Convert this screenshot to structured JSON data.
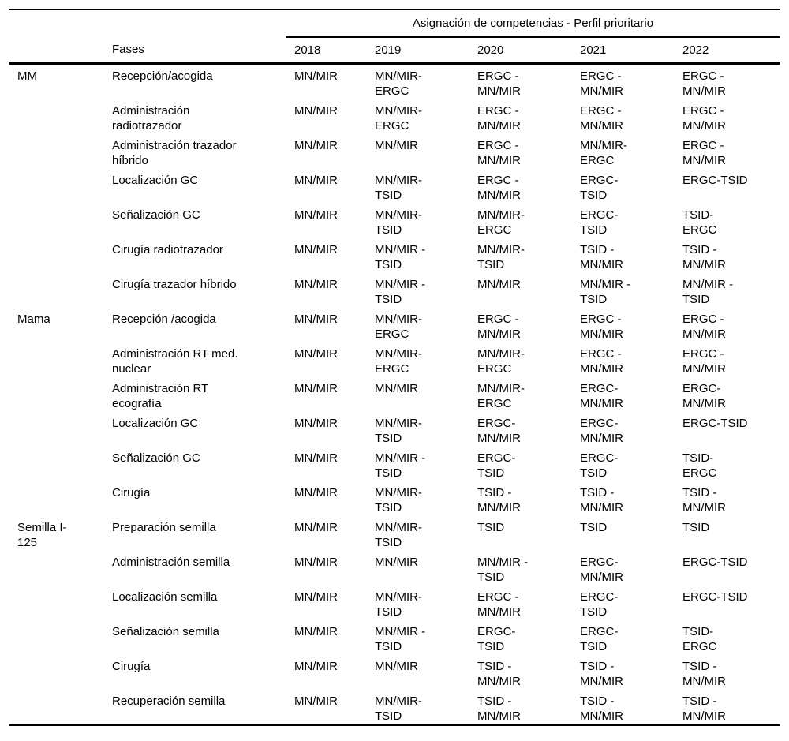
{
  "colors": {
    "background": "#ffffff",
    "text": "#000000",
    "rule": "#000000"
  },
  "table": {
    "spanning_header": "Asignación de competencias - Perfil prioritario",
    "fases_header": "Fases",
    "year_headers": [
      "2018",
      "2019",
      "2020",
      "2021",
      "2022"
    ],
    "groups": [
      {
        "label": "MM",
        "rows": [
          {
            "fase": "Recepción/acogida",
            "values": [
              "MN/MIR",
              "MN/MIR-\nERGC",
              "ERGC -\nMN/MIR",
              "ERGC -\nMN/MIR",
              "ERGC -\nMN/MIR"
            ]
          },
          {
            "fase": "Administración\nradiotrazador",
            "values": [
              "MN/MIR",
              "MN/MIR-\nERGC",
              "ERGC -\nMN/MIR",
              "ERGC -\nMN/MIR",
              "ERGC -\nMN/MIR"
            ]
          },
          {
            "fase": "Administración trazador\nhíbrido",
            "values": [
              "MN/MIR",
              "MN/MIR",
              "ERGC -\nMN/MIR",
              "MN/MIR-\nERGC",
              "ERGC -\nMN/MIR"
            ]
          },
          {
            "fase": "Localización GC",
            "values": [
              "MN/MIR",
              "MN/MIR-\nTSID",
              "ERGC -\nMN/MIR",
              "ERGC-\nTSID",
              "ERGC-TSID"
            ]
          },
          {
            "fase": "Señalización GC",
            "values": [
              "MN/MIR",
              "MN/MIR-\nTSID",
              "MN/MIR-\nERGC",
              "ERGC-\nTSID",
              "TSID-\nERGC"
            ]
          },
          {
            "fase": "Cirugía radiotrazador",
            "values": [
              "MN/MIR",
              "MN/MIR -\nTSID",
              "MN/MIR-\nTSID",
              "TSID -\nMN/MIR",
              "TSID -\nMN/MIR"
            ]
          },
          {
            "fase": "Cirugía trazador híbrido",
            "values": [
              "MN/MIR",
              "MN/MIR -\nTSID",
              "MN/MIR",
              "MN/MIR -\nTSID",
              "MN/MIR -\nTSID"
            ]
          }
        ]
      },
      {
        "label": "Mama",
        "rows": [
          {
            "fase": "Recepción /acogida",
            "values": [
              "MN/MIR",
              "MN/MIR-\nERGC",
              "ERGC -\nMN/MIR",
              "ERGC -\nMN/MIR",
              "ERGC -\nMN/MIR"
            ]
          },
          {
            "fase": "Administración RT med.\nnuclear",
            "values": [
              "MN/MIR",
              "MN/MIR-\nERGC",
              "MN/MIR-\nERGC",
              "ERGC -\nMN/MIR",
              "ERGC -\nMN/MIR"
            ]
          },
          {
            "fase": "Administración RT\necografía",
            "values": [
              "MN/MIR",
              "MN/MIR",
              "MN/MIR-\nERGC",
              "ERGC-\nMN/MIR",
              "ERGC-\nMN/MIR"
            ]
          },
          {
            "fase": "Localización GC",
            "values": [
              "MN/MIR",
              "MN/MIR-\nTSID",
              "ERGC-\nMN/MIR",
              "ERGC-\nMN/MIR",
              "ERGC-TSID"
            ]
          },
          {
            "fase": "Señalización GC",
            "values": [
              "MN/MIR",
              "MN/MIR -\nTSID",
              "ERGC-\nTSID",
              "ERGC-\nTSID",
              "TSID-\nERGC"
            ]
          },
          {
            "fase": "Cirugía",
            "values": [
              "MN/MIR",
              "MN/MIR-\nTSID",
              "TSID -\nMN/MIR",
              "TSID -\nMN/MIR",
              "TSID -\nMN/MIR"
            ]
          }
        ]
      },
      {
        "label": "Semilla I-\n125",
        "rows": [
          {
            "fase": "Preparación semilla",
            "values": [
              "MN/MIR",
              "MN/MIR-\nTSID",
              "TSID",
              "TSID",
              "TSID"
            ]
          },
          {
            "fase": "Administración semilla",
            "values": [
              "MN/MIR",
              "MN/MIR",
              "MN/MIR -\nTSID",
              "ERGC-\nMN/MIR",
              "ERGC-TSID"
            ]
          },
          {
            "fase": "Localización semilla",
            "values": [
              "MN/MIR",
              "MN/MIR-\nTSID",
              "ERGC -\nMN/MIR",
              "ERGC-\nTSID",
              "ERGC-TSID"
            ]
          },
          {
            "fase": "Señalización semilla",
            "values": [
              "MN/MIR",
              "MN/MIR -\nTSID",
              "ERGC-\nTSID",
              "ERGC-\nTSID",
              "TSID-\nERGC"
            ]
          },
          {
            "fase": "Cirugía",
            "values": [
              "MN/MIR",
              "MN/MIR",
              "TSID -\nMN/MIR",
              "TSID -\nMN/MIR",
              "TSID -\nMN/MIR"
            ]
          },
          {
            "fase": "Recuperación semilla",
            "values": [
              "MN/MIR",
              "MN/MIR-\nTSID",
              "TSID -\nMN/MIR",
              "TSID -\nMN/MIR",
              "TSID -\nMN/MIR"
            ]
          }
        ]
      }
    ]
  }
}
